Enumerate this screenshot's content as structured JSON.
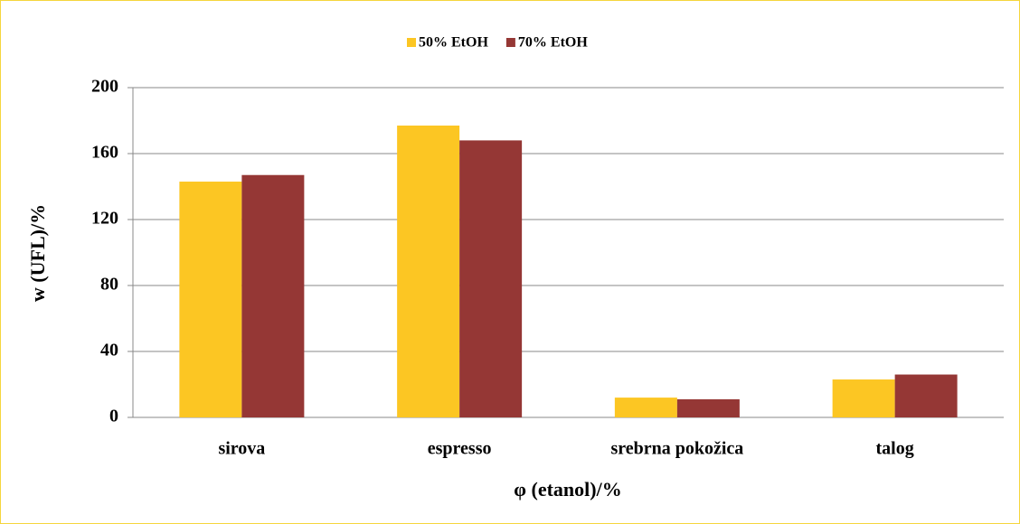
{
  "chart_data": {
    "type": "bar",
    "xlabel": "φ (etanol)/%",
    "ylabel": "w (UFL)/%",
    "categories": [
      "sirova",
      "espresso",
      "srebrna pokožica",
      "talog"
    ],
    "series": [
      {
        "name": "50% EtOH",
        "color": "#fcc623",
        "values": [
          143,
          177,
          12,
          23
        ]
      },
      {
        "name": "70% EtOH",
        "color": "#953735",
        "values": [
          147,
          168,
          11,
          26
        ]
      }
    ],
    "ylim": [
      0,
      200
    ],
    "yticks": [
      0,
      40,
      80,
      120,
      160,
      200
    ],
    "grid": true,
    "legend": "top"
  }
}
